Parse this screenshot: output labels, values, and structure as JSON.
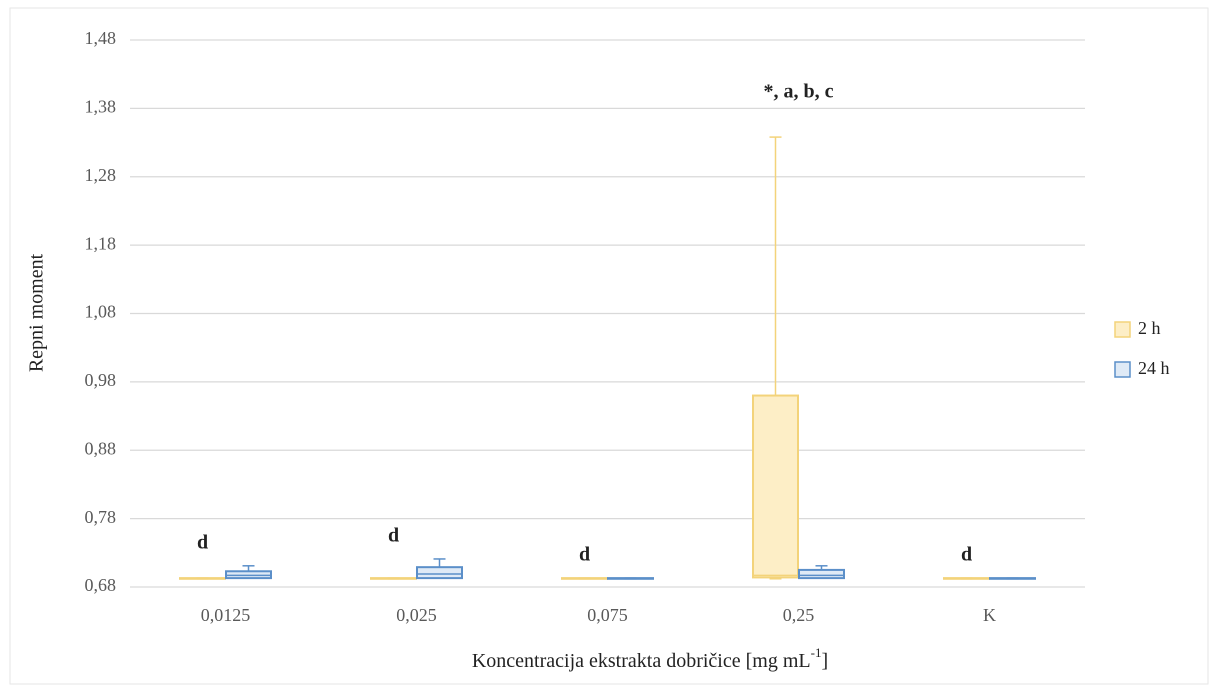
{
  "chart_data": {
    "type": "box",
    "y_label": "Repni moment",
    "x_label": [
      "Koncentracija ekstrakta dobričice [mg mL",
      "-1",
      "]"
    ],
    "categories": [
      "0,0125",
      "0,025",
      "0,075",
      "0,25",
      "K"
    ],
    "annotations": [
      "d",
      "d",
      "d",
      "*, a, b, c",
      "d"
    ],
    "ylim": [
      0.68,
      1.48
    ],
    "yticks": [
      {
        "value": 0.68,
        "label": "0,68"
      },
      {
        "value": 0.78,
        "label": "0,78"
      },
      {
        "value": 0.88,
        "label": "0,88"
      },
      {
        "value": 0.98,
        "label": "0,98"
      },
      {
        "value": 1.08,
        "label": "1,08"
      },
      {
        "value": 1.18,
        "label": "1,18"
      },
      {
        "value": 1.28,
        "label": "1,28"
      },
      {
        "value": 1.38,
        "label": "1,38"
      },
      {
        "value": 1.48,
        "label": "1,48"
      }
    ],
    "grid": true,
    "legend": "right",
    "series": [
      {
        "name": "2 h",
        "color": "#f3d37a",
        "fill": "#fdeec6",
        "values": [
          {
            "min": 0.692,
            "q1": 0.692,
            "median": 0.692,
            "q3": 0.693,
            "max": 0.693
          },
          {
            "min": 0.692,
            "q1": 0.692,
            "median": 0.692,
            "q3": 0.693,
            "max": 0.693
          },
          {
            "min": 0.692,
            "q1": 0.692,
            "median": 0.692,
            "q3": 0.693,
            "max": 0.693
          },
          {
            "min": 0.692,
            "q1": 0.694,
            "median": 0.697,
            "q3": 0.96,
            "max": 1.338
          },
          {
            "min": 0.692,
            "q1": 0.692,
            "median": 0.692,
            "q3": 0.693,
            "max": 0.693
          }
        ]
      },
      {
        "name": "24 h",
        "color": "#5b8fc9",
        "fill": "#dfeaf6",
        "values": [
          {
            "min": 0.693,
            "q1": 0.693,
            "median": 0.697,
            "q3": 0.703,
            "max": 0.711
          },
          {
            "min": 0.693,
            "q1": 0.693,
            "median": 0.699,
            "q3": 0.709,
            "max": 0.721
          },
          {
            "min": 0.692,
            "q1": 0.692,
            "median": 0.692,
            "q3": 0.693,
            "max": 0.693
          },
          {
            "min": 0.693,
            "q1": 0.693,
            "median": 0.697,
            "q3": 0.705,
            "max": 0.711
          },
          {
            "min": 0.692,
            "q1": 0.692,
            "median": 0.692,
            "q3": 0.693,
            "max": 0.693
          }
        ]
      }
    ]
  }
}
